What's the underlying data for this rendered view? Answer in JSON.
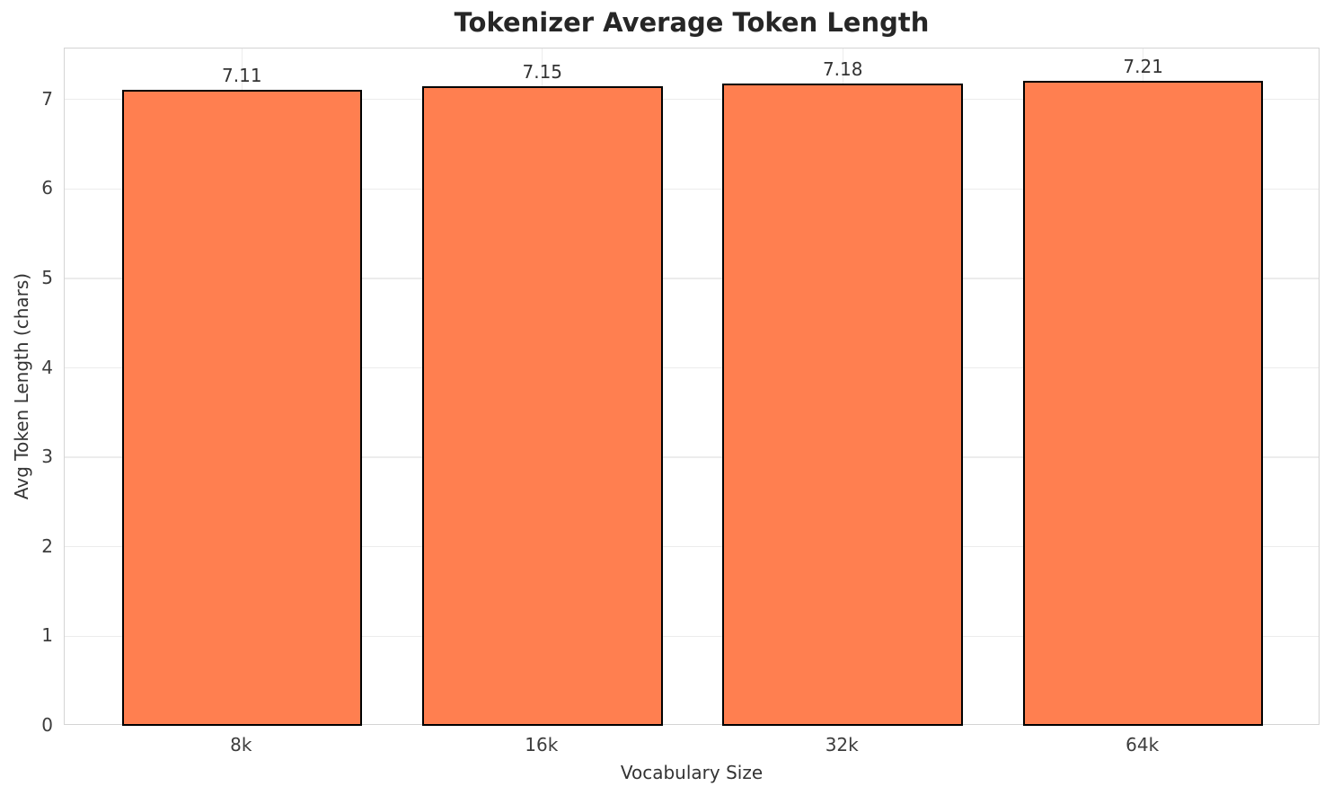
{
  "chart_data": {
    "type": "bar",
    "title": "Tokenizer Average Token Length",
    "xlabel": "Vocabulary Size",
    "ylabel": "Avg Token Length (chars)",
    "categories": [
      "8k",
      "16k",
      "32k",
      "64k"
    ],
    "values": [
      7.11,
      7.15,
      7.18,
      7.21
    ],
    "value_labels": [
      "7.11",
      "7.15",
      "7.18",
      "7.21"
    ],
    "yticks": [
      0,
      1,
      2,
      3,
      4,
      5,
      6,
      7
    ],
    "ylim": [
      0,
      7.57
    ],
    "xlim": [
      -0.59,
      3.59
    ],
    "bar_width": 0.8,
    "grid": true,
    "legend": null,
    "colors": {
      "bar_fill": "#FF7F50",
      "bar_edge": "#000000",
      "grid": "#ececec",
      "spine": "#d4d4d4",
      "title": "#262626",
      "tick": "#3d3d3d"
    }
  }
}
